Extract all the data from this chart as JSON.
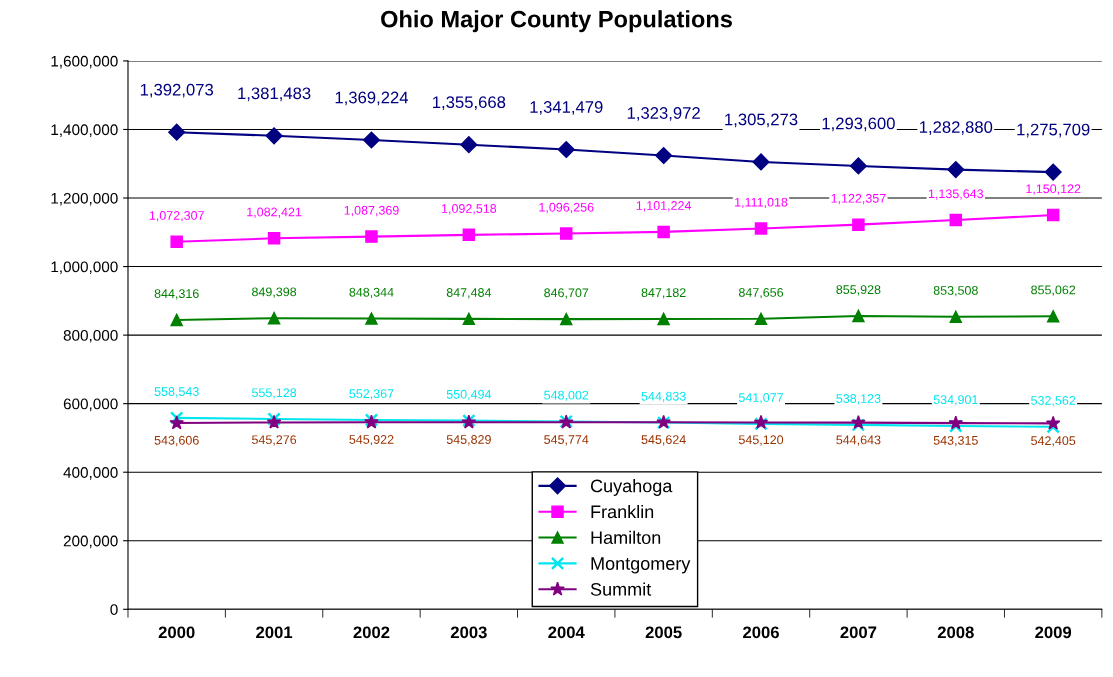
{
  "chart_data": {
    "type": "line",
    "title": "Ohio Major County Populations",
    "categories": [
      "2000",
      "2001",
      "2002",
      "2003",
      "2004",
      "2005",
      "2006",
      "2007",
      "2008",
      "2009"
    ],
    "series": [
      {
        "name": "Cuyahoga",
        "color": "#000080",
        "marker": "diamond",
        "values": [
          1392073,
          1381483,
          1369224,
          1355668,
          1341479,
          1323972,
          1305273,
          1293600,
          1282880,
          1275709
        ],
        "value_labels": [
          "1,392,073",
          "1,381,483",
          "1,369,224",
          "1,355,668",
          "1,341,479",
          "1,323,972",
          "1,305,273",
          "1,293,600",
          "1,282,880",
          "1,275,709"
        ]
      },
      {
        "name": "Franklin",
        "color": "#ff00ff",
        "marker": "square",
        "values": [
          1072307,
          1082421,
          1087369,
          1092518,
          1096256,
          1101224,
          1111018,
          1122357,
          1135643,
          1150122
        ],
        "value_labels": [
          "1,072,307",
          "1,082,421",
          "1,087,369",
          "1,092,518",
          "1,096,256",
          "1,101,224",
          "1,111,018",
          "1,122,357",
          "1,135,643",
          "1,150,122"
        ]
      },
      {
        "name": "Hamilton",
        "color": "#008000",
        "marker": "triangle",
        "values": [
          844316,
          849398,
          848344,
          847484,
          846707,
          847182,
          847656,
          855928,
          853508,
          855062
        ],
        "value_labels": [
          "844,316",
          "849,398",
          "848,344",
          "847,484",
          "846,707",
          "847,182",
          "847,656",
          "855,928",
          "853,508",
          "855,062"
        ]
      },
      {
        "name": "Montgomery",
        "color": "#00e5ee",
        "marker": "cross",
        "values": [
          558543,
          555128,
          552367,
          550494,
          548002,
          544833,
          541077,
          538123,
          534901,
          532562
        ],
        "value_labels": [
          "558,543",
          "555,128",
          "552,367",
          "550,494",
          "548,002",
          "544,833",
          "541,077",
          "538,123",
          "534,901",
          "532,562"
        ]
      },
      {
        "name": "Summit",
        "color": "#800080",
        "marker": "star",
        "values": [
          543606,
          545276,
          545922,
          545829,
          545774,
          545624,
          545120,
          544643,
          543315,
          542405
        ],
        "value_labels": [
          "543,606",
          "545,276",
          "545,922",
          "545,829",
          "545,774",
          "545,624",
          "545,120",
          "544,643",
          "543,315",
          "542,405"
        ]
      }
    ],
    "ylim": [
      0,
      1600000
    ],
    "yticks": [
      {
        "value": 0,
        "label": "0"
      },
      {
        "value": 200000,
        "label": "200,000"
      },
      {
        "value": 400000,
        "label": "400,000"
      },
      {
        "value": 600000,
        "label": "600,000"
      },
      {
        "value": 800000,
        "label": "800,000"
      },
      {
        "value": 1000000,
        "label": "1,000,000"
      },
      {
        "value": 1200000,
        "label": "1,200,000"
      },
      {
        "value": 1400000,
        "label": "1,400,000"
      },
      {
        "value": 1600000,
        "label": "1,600,000"
      }
    ],
    "grid": "y",
    "legend": "bottom"
  }
}
